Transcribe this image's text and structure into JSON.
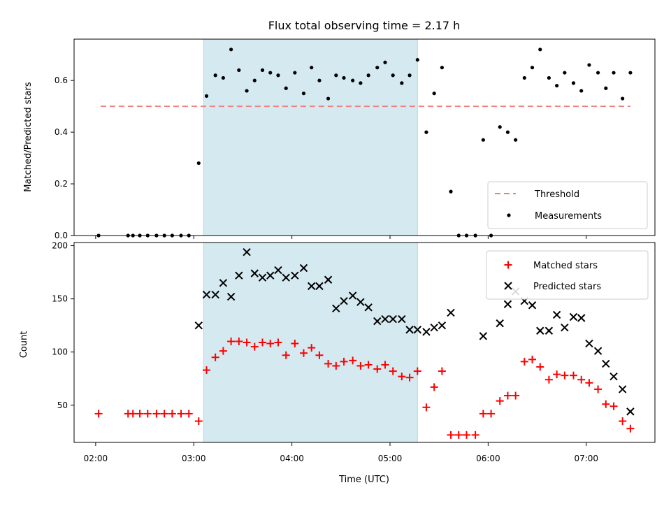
{
  "chart_data": [
    {
      "type": "scatter",
      "title": "Flux total observing time = 2.17 h",
      "ylabel": "Matched/Predicted stars",
      "ylim": [
        0,
        0.76
      ],
      "yticks": [
        "0.0",
        "0.2",
        "0.4",
        "0.6"
      ],
      "ytick_values": [
        0,
        0.2,
        0.4,
        0.6
      ],
      "grid": false,
      "legend_placement": "lower-right",
      "shaded_interval": {
        "start_h": 3.1,
        "end_h": 5.28,
        "color": "#d4eaf0"
      },
      "threshold": {
        "name": "Threshold",
        "value": 0.5,
        "x_range_h": [
          2.05,
          7.45
        ],
        "color": "#f08080"
      },
      "series": [
        {
          "name": "Measurements",
          "color": "#000000",
          "points_h": [
            [
              2.03,
              0.0
            ],
            [
              2.33,
              0.0
            ],
            [
              2.38,
              0.0
            ],
            [
              2.45,
              0.0
            ],
            [
              2.53,
              0.0
            ],
            [
              2.62,
              0.0
            ],
            [
              2.7,
              0.0
            ],
            [
              2.78,
              0.0
            ],
            [
              2.87,
              0.0
            ],
            [
              2.95,
              0.0
            ],
            [
              3.05,
              0.28
            ],
            [
              3.13,
              0.54
            ],
            [
              3.22,
              0.62
            ],
            [
              3.3,
              0.61
            ],
            [
              3.38,
              0.72
            ],
            [
              3.46,
              0.64
            ],
            [
              3.54,
              0.56
            ],
            [
              3.62,
              0.6
            ],
            [
              3.7,
              0.64
            ],
            [
              3.78,
              0.63
            ],
            [
              3.86,
              0.62
            ],
            [
              3.94,
              0.57
            ],
            [
              4.03,
              0.63
            ],
            [
              4.12,
              0.55
            ],
            [
              4.2,
              0.65
            ],
            [
              4.28,
              0.6
            ],
            [
              4.37,
              0.53
            ],
            [
              4.45,
              0.62
            ],
            [
              4.53,
              0.61
            ],
            [
              4.62,
              0.6
            ],
            [
              4.7,
              0.59
            ],
            [
              4.78,
              0.62
            ],
            [
              4.87,
              0.65
            ],
            [
              4.95,
              0.67
            ],
            [
              5.03,
              0.62
            ],
            [
              5.12,
              0.59
            ],
            [
              5.2,
              0.62
            ],
            [
              5.28,
              0.68
            ],
            [
              5.37,
              0.4
            ],
            [
              5.45,
              0.55
            ],
            [
              5.53,
              0.65
            ],
            [
              5.62,
              0.17
            ],
            [
              5.7,
              0.0
            ],
            [
              5.78,
              0.0
            ],
            [
              5.87,
              0.0
            ],
            [
              5.95,
              0.37
            ],
            [
              6.03,
              0.0
            ],
            [
              6.12,
              0.42
            ],
            [
              6.2,
              0.4
            ],
            [
              6.28,
              0.37
            ],
            [
              6.37,
              0.61
            ],
            [
              6.45,
              0.65
            ],
            [
              6.53,
              0.72
            ],
            [
              6.62,
              0.61
            ],
            [
              6.7,
              0.58
            ],
            [
              6.78,
              0.63
            ],
            [
              6.87,
              0.59
            ],
            [
              6.95,
              0.56
            ],
            [
              7.03,
              0.66
            ],
            [
              7.12,
              0.63
            ],
            [
              7.2,
              0.57
            ],
            [
              7.28,
              0.63
            ],
            [
              7.37,
              0.53
            ],
            [
              7.45,
              0.63
            ]
          ]
        }
      ]
    },
    {
      "type": "scatter",
      "xlabel": "Time (UTC)",
      "ylabel": "Count",
      "ylim": [
        15,
        203
      ],
      "yticks": [
        "50",
        "100",
        "150",
        "200"
      ],
      "ytick_values": [
        50,
        100,
        150,
        200
      ],
      "xlim_h": [
        1.78,
        7.7
      ],
      "categories": [
        "02:00",
        "03:00",
        "04:00",
        "05:00",
        "06:00",
        "07:00"
      ],
      "xtick_values_h": [
        2,
        3,
        4,
        5,
        6,
        7
      ],
      "grid": false,
      "legend_placement": "upper-right",
      "shaded_interval": {
        "start_h": 3.1,
        "end_h": 5.28,
        "color": "#d4eaf0"
      },
      "series": [
        {
          "name": "Matched stars",
          "marker": "plus",
          "color": "#ff0000",
          "points_h": [
            [
              2.03,
              42
            ],
            [
              2.33,
              42
            ],
            [
              2.38,
              42
            ],
            [
              2.45,
              42
            ],
            [
              2.53,
              42
            ],
            [
              2.62,
              42
            ],
            [
              2.7,
              42
            ],
            [
              2.78,
              42
            ],
            [
              2.87,
              42
            ],
            [
              2.95,
              42
            ],
            [
              3.05,
              35
            ],
            [
              3.13,
              83
            ],
            [
              3.22,
              95
            ],
            [
              3.3,
              101
            ],
            [
              3.38,
              110
            ],
            [
              3.46,
              110
            ],
            [
              3.54,
              109
            ],
            [
              3.62,
              105
            ],
            [
              3.7,
              109
            ],
            [
              3.78,
              108
            ],
            [
              3.86,
              109
            ],
            [
              3.94,
              97
            ],
            [
              4.03,
              108
            ],
            [
              4.12,
              99
            ],
            [
              4.2,
              104
            ],
            [
              4.28,
              97
            ],
            [
              4.37,
              89
            ],
            [
              4.45,
              87
            ],
            [
              4.53,
              91
            ],
            [
              4.62,
              92
            ],
            [
              4.7,
              87
            ],
            [
              4.78,
              88
            ],
            [
              4.87,
              84
            ],
            [
              4.95,
              88
            ],
            [
              5.03,
              82
            ],
            [
              5.12,
              77
            ],
            [
              5.2,
              76
            ],
            [
              5.28,
              82
            ],
            [
              5.37,
              48
            ],
            [
              5.45,
              67
            ],
            [
              5.53,
              82
            ],
            [
              5.62,
              22
            ],
            [
              5.7,
              22
            ],
            [
              5.78,
              22
            ],
            [
              5.87,
              22
            ],
            [
              5.95,
              42
            ],
            [
              6.03,
              42
            ],
            [
              6.12,
              54
            ],
            [
              6.2,
              59
            ],
            [
              6.28,
              59
            ],
            [
              6.37,
              91
            ],
            [
              6.45,
              93
            ],
            [
              6.53,
              86
            ],
            [
              6.62,
              74
            ],
            [
              6.7,
              79
            ],
            [
              6.78,
              78
            ],
            [
              6.87,
              78
            ],
            [
              6.95,
              74
            ],
            [
              7.03,
              71
            ],
            [
              7.12,
              65
            ],
            [
              7.2,
              51
            ],
            [
              7.28,
              49
            ],
            [
              7.37,
              35
            ],
            [
              7.45,
              28
            ]
          ]
        },
        {
          "name": "Predicted stars",
          "marker": "x",
          "color": "#000000",
          "points_h": [
            [
              3.05,
              125
            ],
            [
              3.13,
              154
            ],
            [
              3.22,
              154
            ],
            [
              3.3,
              165
            ],
            [
              3.38,
              152
            ],
            [
              3.46,
              172
            ],
            [
              3.54,
              194
            ],
            [
              3.62,
              174
            ],
            [
              3.7,
              170
            ],
            [
              3.78,
              172
            ],
            [
              3.86,
              177
            ],
            [
              3.94,
              170
            ],
            [
              4.03,
              172
            ],
            [
              4.12,
              179
            ],
            [
              4.2,
              162
            ],
            [
              4.28,
              162
            ],
            [
              4.37,
              168
            ],
            [
              4.45,
              141
            ],
            [
              4.53,
              148
            ],
            [
              4.62,
              153
            ],
            [
              4.7,
              147
            ],
            [
              4.78,
              142
            ],
            [
              4.87,
              129
            ],
            [
              4.95,
              131
            ],
            [
              5.03,
              131
            ],
            [
              5.12,
              131
            ],
            [
              5.2,
              121
            ],
            [
              5.28,
              121
            ],
            [
              5.37,
              119
            ],
            [
              5.45,
              123
            ],
            [
              5.53,
              125
            ],
            [
              5.62,
              137
            ],
            [
              5.95,
              115
            ],
            [
              6.12,
              127
            ],
            [
              6.2,
              145
            ],
            [
              6.28,
              157
            ],
            [
              6.37,
              148
            ],
            [
              6.45,
              144
            ],
            [
              6.53,
              120
            ],
            [
              6.62,
              120
            ],
            [
              6.7,
              135
            ],
            [
              6.78,
              123
            ],
            [
              6.87,
              133
            ],
            [
              6.95,
              132
            ],
            [
              7.03,
              108
            ],
            [
              7.12,
              101
            ],
            [
              7.2,
              89
            ],
            [
              7.28,
              77
            ],
            [
              7.37,
              65
            ],
            [
              7.45,
              44
            ]
          ]
        }
      ]
    }
  ]
}
